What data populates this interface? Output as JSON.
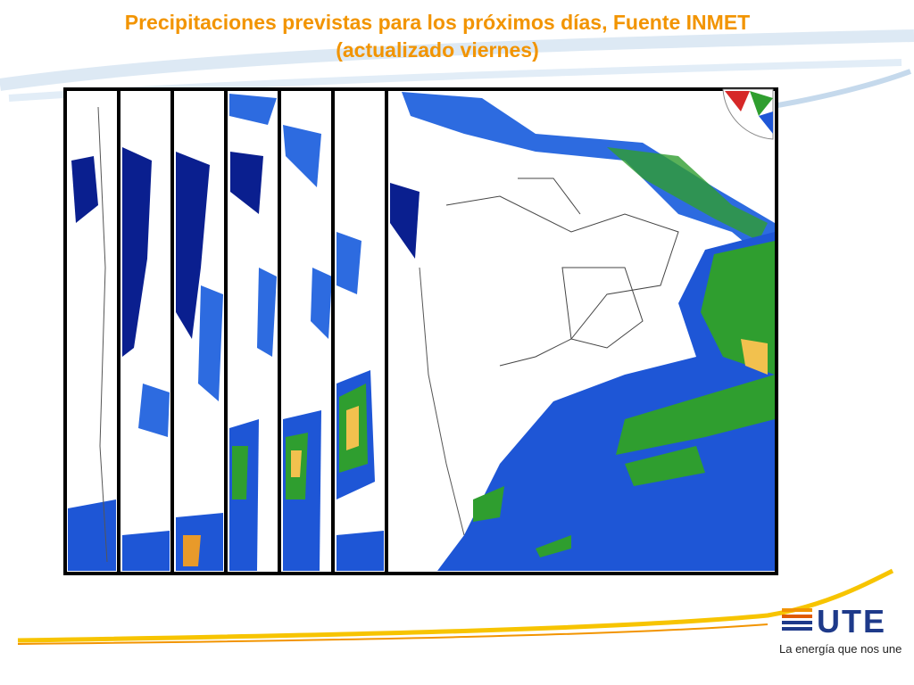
{
  "header": {
    "title": [
      "Precipitaciones previstas para los próximos días, Fuente INMET",
      "(actualizado viernes)"
    ]
  },
  "logo": {
    "name": "UTE",
    "tagline": "La energía que nos une"
  }
}
